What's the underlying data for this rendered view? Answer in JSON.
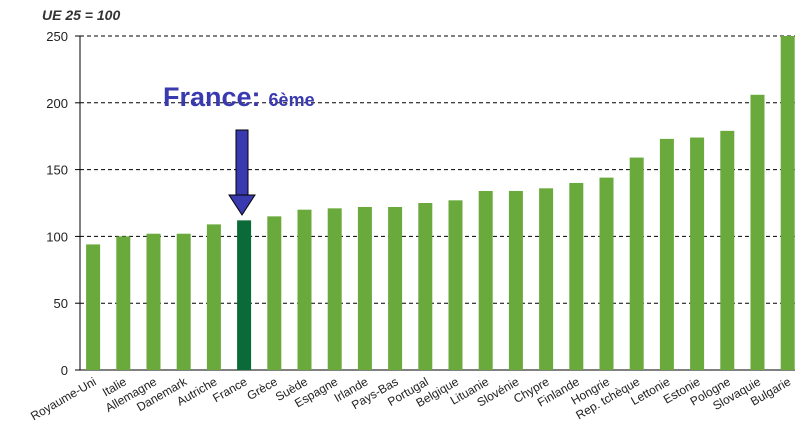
{
  "chart_data": {
    "type": "bar",
    "subtitle": "UE 25 = 100",
    "annotation": {
      "text": "France:",
      "detail": "6ème"
    },
    "categories": [
      "Royaume-Uni",
      "Italie",
      "Allemagne",
      "Danemark",
      "Autriche",
      "France",
      "Grèce",
      "Suède",
      "Espagne",
      "Irlande",
      "Pays-Bas",
      "Portugal",
      "Belgique",
      "Lituanie",
      "Slovénie",
      "Chypre",
      "Finlande",
      "Hongrie",
      "Rep. tchèque",
      "Lettonie",
      "Estonie",
      "Pologne",
      "Slovaquie",
      "Bulgarie"
    ],
    "values": [
      94,
      100,
      102,
      102,
      109,
      112,
      115,
      120,
      121,
      122,
      122,
      125,
      127,
      134,
      134,
      136,
      140,
      144,
      159,
      173,
      174,
      179,
      206,
      250
    ],
    "colors": [
      "#6aaa3c",
      "#6aaa3c",
      "#6aaa3c",
      "#6aaa3c",
      "#6aaa3c",
      "#0b6b38",
      "#6aaa3c",
      "#6aaa3c",
      "#6aaa3c",
      "#6aaa3c",
      "#6aaa3c",
      "#6aaa3c",
      "#6aaa3c",
      "#6aaa3c",
      "#6aaa3c",
      "#6aaa3c",
      "#6aaa3c",
      "#6aaa3c",
      "#6aaa3c",
      "#6aaa3c",
      "#6aaa3c",
      "#6aaa3c",
      "#6aaa3c",
      "#6aaa3c"
    ],
    "ylim": [
      0,
      250
    ],
    "yticks": [
      0,
      50,
      100,
      150,
      200,
      250
    ],
    "grid": true
  }
}
